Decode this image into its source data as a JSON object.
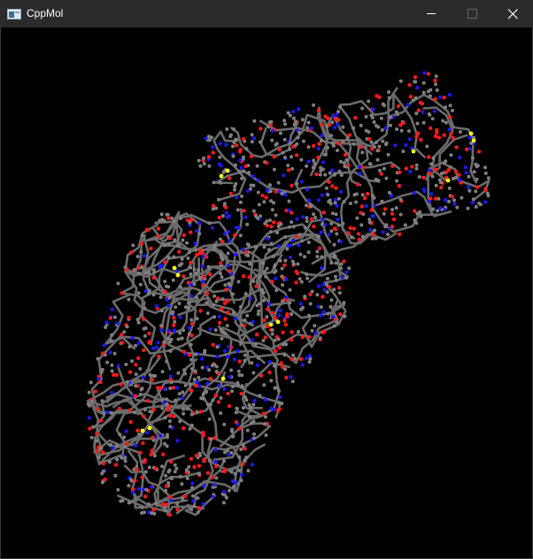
{
  "window": {
    "title": "CppMol",
    "icon": "app-window-icon",
    "controls": [
      {
        "name": "minimize",
        "icon": "minimize-icon"
      },
      {
        "name": "maximize",
        "icon": "maximize-icon",
        "disabled": true
      },
      {
        "name": "close",
        "icon": "close-icon"
      }
    ]
  },
  "viewer": {
    "background_color": "#000000",
    "bond_color": "#6b6b6b",
    "atom_colors": {
      "carbon": "#808080",
      "oxygen": "#ff1a1a",
      "nitrogen": "#1a1aff",
      "sulfur": "#ffff1a"
    }
  }
}
